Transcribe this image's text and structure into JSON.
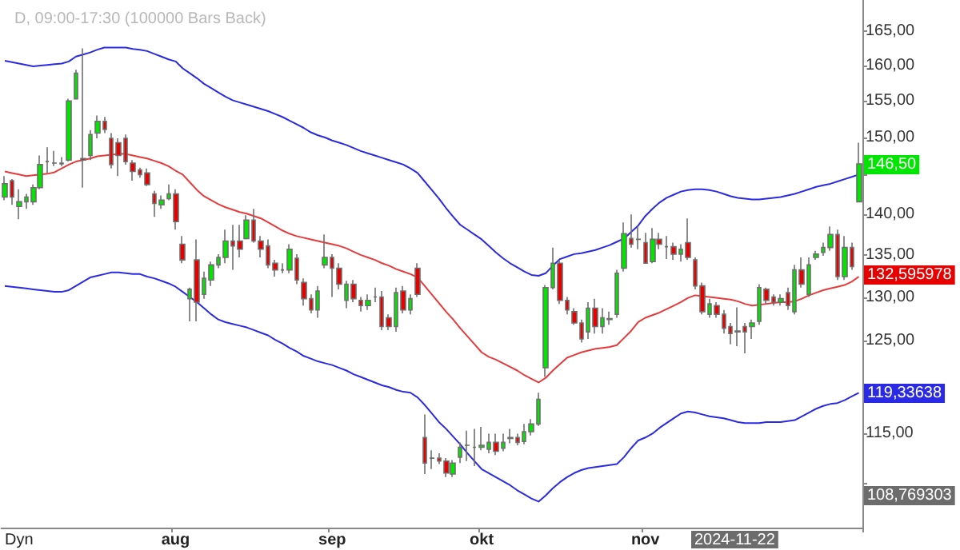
{
  "chart_data": {
    "type": "candlestick",
    "title": "D, 09:00-17:30 (100000 Bars Back)",
    "categories": [
      null,
      null,
      null,
      null,
      null,
      null,
      null,
      null,
      null,
      null,
      null,
      null,
      null,
      null,
      null,
      null,
      null,
      null,
      null,
      null,
      null,
      null,
      null,
      null,
      "aug",
      null,
      null,
      null,
      null,
      null,
      null,
      null,
      null,
      null,
      null,
      null,
      null,
      null,
      null,
      null,
      null,
      null,
      null,
      null,
      null,
      null,
      "sep",
      null,
      null,
      null,
      null,
      null,
      null,
      null,
      null,
      null,
      null,
      null,
      null,
      null,
      null,
      null,
      null,
      null,
      null,
      null,
      null,
      "okt",
      null,
      null,
      null,
      null,
      null,
      null,
      null,
      null,
      null,
      null,
      null,
      null,
      null,
      null,
      null,
      null,
      null,
      null,
      null,
      null,
      null,
      null,
      "nov",
      null,
      null,
      null,
      null,
      null,
      null,
      null,
      null,
      null,
      null,
      null,
      null,
      null,
      null,
      null,
      null,
      null,
      null,
      null,
      null,
      null,
      null,
      null,
      null,
      null,
      null,
      null,
      null,
      null,
      null
    ],
    "ohlc": [
      [
        142.2,
        144.9,
        141.8,
        143.9
      ],
      [
        144.3,
        144.5,
        141.2,
        142.2
      ],
      [
        141.0,
        143.2,
        139.4,
        141.6
      ],
      [
        141.6,
        142.6,
        140.7,
        142.2
      ],
      [
        141.6,
        143.8,
        141.2,
        143.4
      ],
      [
        143.4,
        147.6,
        143.2,
        146.4
      ],
      [
        146.8,
        148.7,
        145.3,
        146.8
      ],
      [
        146.6,
        148.2,
        146.2,
        146.6
      ],
      [
        146.5,
        147.4,
        146.2,
        146.6
      ],
      [
        147.0,
        155.3,
        146.8,
        155.0
      ],
      [
        155.3,
        159.4,
        155.3,
        158.9
      ],
      [
        147.2,
        162.5,
        143.4,
        147.0
      ],
      [
        147.6,
        151.0,
        147.0,
        150.4
      ],
      [
        150.6,
        153.0,
        149.9,
        152.2
      ],
      [
        152.2,
        152.8,
        150.6,
        151.1
      ],
      [
        149.9,
        150.6,
        145.9,
        146.4
      ],
      [
        149.3,
        149.9,
        144.9,
        147.6
      ],
      [
        149.9,
        150.4,
        146.4,
        146.8
      ],
      [
        146.6,
        147.0,
        144.3,
        145.5
      ],
      [
        145.7,
        146.0,
        144.7,
        145.1
      ],
      [
        145.3,
        145.9,
        143.6,
        143.8
      ],
      [
        142.6,
        143.0,
        139.7,
        141.4
      ],
      [
        141.2,
        142.4,
        140.7,
        141.8
      ],
      [
        142.0,
        143.8,
        141.8,
        142.6
      ],
      [
        142.6,
        143.2,
        138.1,
        139.1
      ],
      [
        136.3,
        137.3,
        134.0,
        134.4
      ],
      [
        129.8,
        131.1,
        127.2,
        130.9
      ],
      [
        134.4,
        136.9,
        127.2,
        129.4
      ],
      [
        130.3,
        133.0,
        129.8,
        132.2
      ],
      [
        132.0,
        134.2,
        131.3,
        133.8
      ],
      [
        133.8,
        135.1,
        133.4,
        134.7
      ],
      [
        134.7,
        138.1,
        134.0,
        136.7
      ],
      [
        136.7,
        138.7,
        133.2,
        136.1
      ],
      [
        136.7,
        138.7,
        134.7,
        135.7
      ],
      [
        137.0,
        139.9,
        136.9,
        139.3
      ],
      [
        139.3,
        140.7,
        136.5,
        136.7
      ],
      [
        136.7,
        137.3,
        134.7,
        135.7
      ],
      [
        136.1,
        136.9,
        133.4,
        133.8
      ],
      [
        134.0,
        134.4,
        132.4,
        133.2
      ],
      [
        133.2,
        134.0,
        132.8,
        133.2
      ],
      [
        133.2,
        136.3,
        132.8,
        135.7
      ],
      [
        134.6,
        135.1,
        131.5,
        132.0
      ],
      [
        131.7,
        132.2,
        129.0,
        129.8
      ],
      [
        129.8,
        130.3,
        128.1,
        128.5
      ],
      [
        128.5,
        131.3,
        127.6,
        130.7
      ],
      [
        133.8,
        137.5,
        133.4,
        134.7
      ],
      [
        134.7,
        135.1,
        130.0,
        133.4
      ],
      [
        133.4,
        134.0,
        130.9,
        131.5
      ],
      [
        129.6,
        131.9,
        128.7,
        131.5
      ],
      [
        131.5,
        132.0,
        129.4,
        129.8
      ],
      [
        129.6,
        130.0,
        128.3,
        129.0
      ],
      [
        129.0,
        130.3,
        128.5,
        129.6
      ],
      [
        130.0,
        131.1,
        129.4,
        130.0
      ],
      [
        130.0,
        130.7,
        126.2,
        126.6
      ],
      [
        127.6,
        128.0,
        126.2,
        126.6
      ],
      [
        126.6,
        131.1,
        126.0,
        130.5
      ],
      [
        130.7,
        131.3,
        128.1,
        128.5
      ],
      [
        128.5,
        130.3,
        128.0,
        129.8
      ],
      [
        133.4,
        134.0,
        130.0,
        130.3
      ],
      [
        114.6,
        117.0,
        110.9,
        112.0
      ],
      [
        112.5,
        113.3,
        111.4,
        112.5
      ],
      [
        112.5,
        113.0,
        111.9,
        112.2
      ],
      [
        112.2,
        112.5,
        110.6,
        111.0
      ],
      [
        110.9,
        112.3,
        110.6,
        112.0
      ],
      [
        112.6,
        114.1,
        112.0,
        113.6
      ],
      [
        113.8,
        115.3,
        112.2,
        113.8
      ],
      [
        113.6,
        115.5,
        111.7,
        113.6
      ],
      [
        113.6,
        115.7,
        113.3,
        113.8
      ],
      [
        113.4,
        115.0,
        113.0,
        114.1
      ],
      [
        114.1,
        115.0,
        112.8,
        113.2
      ],
      [
        113.5,
        115.0,
        113.2,
        114.1
      ],
      [
        114.5,
        115.5,
        114.0,
        114.6
      ],
      [
        114.6,
        115.0,
        113.8,
        114.1
      ],
      [
        114.2,
        116.0,
        113.9,
        115.2
      ],
      [
        115.2,
        116.5,
        114.8,
        116.0
      ],
      [
        116.0,
        119.3,
        115.8,
        118.6
      ],
      [
        122.0,
        131.4,
        121.0,
        131.1
      ],
      [
        131.1,
        135.9,
        130.9,
        134.0
      ],
      [
        134.0,
        134.4,
        129.2,
        129.6
      ],
      [
        129.6,
        130.0,
        128.0,
        128.5
      ],
      [
        128.3,
        128.7,
        126.8,
        127.0
      ],
      [
        127.0,
        127.4,
        124.8,
        125.2
      ],
      [
        126.0,
        129.4,
        125.2,
        128.7
      ],
      [
        128.7,
        129.8,
        125.8,
        126.6
      ],
      [
        126.6,
        128.7,
        125.8,
        127.6
      ],
      [
        127.5,
        128.3,
        126.8,
        127.4
      ],
      [
        128.0,
        133.2,
        127.6,
        132.8
      ],
      [
        133.4,
        139.0,
        133.0,
        137.6
      ],
      [
        137.0,
        140.0,
        135.9,
        136.3
      ],
      [
        136.9,
        138.5,
        135.7,
        136.9
      ],
      [
        136.5,
        137.7,
        134.0,
        134.0
      ],
      [
        134.2,
        138.3,
        134.0,
        136.9
      ],
      [
        136.9,
        137.7,
        135.7,
        136.3
      ],
      [
        136.0,
        137.3,
        134.5,
        136.0
      ],
      [
        136.0,
        136.5,
        134.4,
        135.1
      ],
      [
        135.1,
        136.3,
        134.2,
        135.7
      ],
      [
        136.5,
        139.5,
        134.4,
        134.7
      ],
      [
        134.4,
        134.7,
        130.9,
        131.3
      ],
      [
        131.3,
        131.7,
        128.0,
        128.3
      ],
      [
        128.0,
        129.8,
        127.6,
        129.2
      ],
      [
        129.0,
        129.4,
        127.6,
        128.0
      ],
      [
        128.0,
        128.5,
        125.8,
        126.4
      ],
      [
        126.6,
        127.0,
        124.6,
        125.8
      ],
      [
        126.0,
        128.8,
        124.4,
        126.1
      ],
      [
        126.6,
        127.0,
        123.6,
        126.0
      ],
      [
        126.6,
        127.4,
        125.2,
        127.0
      ],
      [
        127.2,
        131.5,
        126.8,
        131.1
      ],
      [
        130.9,
        131.1,
        129.2,
        129.6
      ],
      [
        130.0,
        130.3,
        129.0,
        129.4
      ],
      [
        129.4,
        130.3,
        129.0,
        129.8
      ],
      [
        130.5,
        131.1,
        128.5,
        129.0
      ],
      [
        128.3,
        133.8,
        128.0,
        133.2
      ],
      [
        133.2,
        134.7,
        131.1,
        131.5
      ],
      [
        130.3,
        134.7,
        130.0,
        133.8
      ],
      [
        134.7,
        135.5,
        134.4,
        135.1
      ],
      [
        135.3,
        136.5,
        134.9,
        135.9
      ],
      [
        135.9,
        138.5,
        135.5,
        137.5
      ],
      [
        137.5,
        138.1,
        132.0,
        132.4
      ],
      [
        132.4,
        137.3,
        132.0,
        135.9
      ],
      [
        135.9,
        136.5,
        133.2,
        133.6
      ],
      [
        141.6,
        149.3,
        141.6,
        146.5
      ]
    ],
    "colors": [
      "#00e600",
      "#e60000",
      "#00e600",
      "#00e600",
      "#00e600",
      "#00e600",
      "#6e6e6e",
      "#6e6e6e",
      "#00e600",
      "#00e600",
      "#00e600",
      "#e60000",
      "#00e600",
      "#00e600",
      "#e60000",
      "#e60000",
      "#e60000",
      "#e60000",
      "#e60000",
      "#e60000",
      "#e60000",
      "#e60000",
      "#00e600",
      "#00e600",
      "#e60000",
      "#e60000",
      "#00e600",
      "#e60000",
      "#00e600",
      "#00e600",
      "#00e600",
      "#00e600",
      "#e60000",
      "#e60000",
      "#00e600",
      "#e60000",
      "#e60000",
      "#e60000",
      "#e60000",
      "#6e6e6e",
      "#00e600",
      "#e60000",
      "#e60000",
      "#e60000",
      "#00e600",
      "#00e600",
      "#e60000",
      "#e60000",
      "#00e600",
      "#e60000",
      "#e60000",
      "#00e600",
      "#6e6e6e",
      "#e60000",
      "#e60000",
      "#00e600",
      "#e60000",
      "#00e600",
      "#e60000",
      "#e60000",
      "#6e6e6e",
      "#e60000",
      "#e60000",
      "#00e600",
      "#00e600",
      "#6e6e6e",
      "#6e6e6e",
      "#00e600",
      "#00e600",
      "#e60000",
      "#00e600",
      "#00e600",
      "#e60000",
      "#00e600",
      "#00e600",
      "#00e600",
      "#00e600",
      "#00e600",
      "#e60000",
      "#e60000",
      "#e60000",
      "#e60000",
      "#00e600",
      "#e60000",
      "#00e600",
      "#e60000",
      "#00e600",
      "#00e600",
      "#e60000",
      "#6e6e6e",
      "#e60000",
      "#00e600",
      "#e60000",
      "#6e6e6e",
      "#e60000",
      "#00e600",
      "#e60000",
      "#e60000",
      "#e60000",
      "#00e600",
      "#e60000",
      "#e60000",
      "#e60000",
      "#00e600",
      "#e60000",
      "#00e600",
      "#00e600",
      "#e60000",
      "#e60000",
      "#00e600",
      "#e60000",
      "#00e600",
      "#e60000",
      "#00e600",
      "#00e600",
      "#00e600",
      "#00e600",
      "#e60000",
      "#00e600",
      "#e60000",
      "#00e600"
    ],
    "series": [
      {
        "type": "line",
        "color": "#2a2ae6",
        "values": [
          160.7,
          160.5,
          160.3,
          160.1,
          159.9,
          160.0,
          160.1,
          160.2,
          160.3,
          160.6,
          161.3,
          161.6,
          161.9,
          162.3,
          162.6,
          162.6,
          162.6,
          162.6,
          162.4,
          162.3,
          162.1,
          161.7,
          161.3,
          160.9,
          160.6,
          159.6,
          158.9,
          158.2,
          157.4,
          156.8,
          156.2,
          155.6,
          155.1,
          154.8,
          154.5,
          154.2,
          153.9,
          153.6,
          153.2,
          152.8,
          152.3,
          151.8,
          151.3,
          150.7,
          150.3,
          150.0,
          149.6,
          149.3,
          149.0,
          148.6,
          148.2,
          147.9,
          147.6,
          147.3,
          147.0,
          146.7,
          146.4,
          145.9,
          145.3,
          144.2,
          143.1,
          142.0,
          140.8,
          139.7,
          138.7,
          138.1,
          137.5,
          136.9,
          136.1,
          135.3,
          134.6,
          134.0,
          133.5,
          133.0,
          132.6,
          132.5,
          132.8,
          133.7,
          134.5,
          134.8,
          135.1,
          135.2,
          135.4,
          135.6,
          135.9,
          136.2,
          136.6,
          137.0,
          137.8,
          138.6,
          139.8,
          140.7,
          141.5,
          142.1,
          142.5,
          142.9,
          143.1,
          143.2,
          143.2,
          143.1,
          142.9,
          142.6,
          142.3,
          142.1,
          142.0,
          141.9,
          141.9,
          142.0,
          142.1,
          142.2,
          142.4,
          142.6,
          142.9,
          143.2,
          143.5,
          143.7,
          143.9,
          144.2,
          144.5,
          144.8,
          145.1
        ]
      },
      {
        "type": "line",
        "color": "#e83a3a",
        "values": [
          145.5,
          145.3,
          145.1,
          144.9,
          145.0,
          145.1,
          145.2,
          145.4,
          145.9,
          146.4,
          146.8,
          147.0,
          147.2,
          147.5,
          147.6,
          147.7,
          147.8,
          147.8,
          147.6,
          147.4,
          147.2,
          146.9,
          146.6,
          146.2,
          145.6,
          145.1,
          144.1,
          143.1,
          142.3,
          141.8,
          141.3,
          140.9,
          140.6,
          140.3,
          140.1,
          139.8,
          139.5,
          139.0,
          138.5,
          138.0,
          137.6,
          137.3,
          137.1,
          136.9,
          136.7,
          136.5,
          136.3,
          136.1,
          135.8,
          135.4,
          135.0,
          134.7,
          134.4,
          134.0,
          133.7,
          133.3,
          133.0,
          132.7,
          132.3,
          131.3,
          130.3,
          129.3,
          128.3,
          127.4,
          126.4,
          125.5,
          124.6,
          123.7,
          123.2,
          122.9,
          122.5,
          122.1,
          121.7,
          121.2,
          120.8,
          120.4,
          120.9,
          121.7,
          122.4,
          123.1,
          123.4,
          123.7,
          123.9,
          124.1,
          124.2,
          124.3,
          124.5,
          125.3,
          126.1,
          127.1,
          127.6,
          127.9,
          128.2,
          128.6,
          129.0,
          129.4,
          129.9,
          130.2,
          130.1,
          130.0,
          129.9,
          129.8,
          129.7,
          129.5,
          129.2,
          129.0,
          129.1,
          129.2,
          129.3,
          129.4,
          129.4,
          129.5,
          129.8,
          130.2,
          130.5,
          130.8,
          131.0,
          131.2,
          131.4,
          131.8,
          132.4
        ]
      },
      {
        "type": "line",
        "color": "#2a2ae6",
        "values": [
          131.3,
          131.2,
          131.1,
          131.0,
          130.9,
          130.8,
          130.7,
          130.6,
          130.6,
          130.8,
          131.3,
          131.8,
          132.3,
          132.5,
          132.7,
          132.9,
          132.9,
          132.8,
          132.7,
          132.7,
          132.4,
          132.2,
          131.9,
          131.6,
          131.2,
          130.6,
          130.0,
          129.4,
          128.7,
          128.0,
          127.4,
          127.1,
          126.9,
          126.7,
          126.5,
          126.2,
          125.9,
          125.6,
          125.1,
          124.7,
          124.2,
          123.8,
          123.3,
          123.0,
          122.7,
          122.5,
          122.3,
          122.0,
          121.7,
          121.3,
          121.0,
          120.7,
          120.4,
          120.1,
          119.9,
          119.6,
          119.4,
          119.3,
          118.8,
          118.0,
          117.1,
          116.2,
          115.5,
          114.7,
          113.9,
          113.0,
          112.2,
          111.4,
          111.0,
          110.6,
          110.2,
          109.8,
          109.3,
          108.9,
          108.5,
          108.2,
          108.8,
          109.5,
          110.1,
          110.6,
          111.0,
          111.3,
          111.5,
          111.6,
          111.7,
          111.8,
          111.9,
          112.6,
          113.5,
          114.3,
          114.6,
          115.0,
          115.6,
          116.1,
          116.6,
          117.1,
          117.3,
          117.2,
          117.0,
          116.8,
          116.7,
          116.6,
          116.4,
          116.2,
          116.1,
          116.1,
          116.1,
          116.2,
          116.2,
          116.2,
          116.3,
          116.4,
          116.8,
          117.2,
          117.6,
          117.9,
          118.1,
          118.2,
          118.5,
          118.9,
          119.3
        ]
      }
    ],
    "log": true,
    "ylim": [
      105.7,
      169.7
    ],
    "yticks": [
      {
        "value": 110,
        "label": null
      },
      {
        "value": 115,
        "label": "115,00"
      },
      {
        "value": 120,
        "label": null
      },
      {
        "value": 125,
        "label": "125,00"
      },
      {
        "value": 130,
        "label": "130,00"
      },
      {
        "value": 135,
        "label": "135,00"
      },
      {
        "value": 140,
        "label": "140,00"
      },
      {
        "value": 145,
        "label": null
      },
      {
        "value": 150,
        "label": "150,00"
      },
      {
        "value": 155,
        "label": "155,00"
      },
      {
        "value": 160,
        "label": "160,00"
      },
      {
        "value": 165,
        "label": "165,00"
      }
    ],
    "annotations": [
      "146,50",
      "132,595978",
      "119,33638",
      "108,769303",
      "2024-11-22",
      "Dyn"
    ]
  }
}
